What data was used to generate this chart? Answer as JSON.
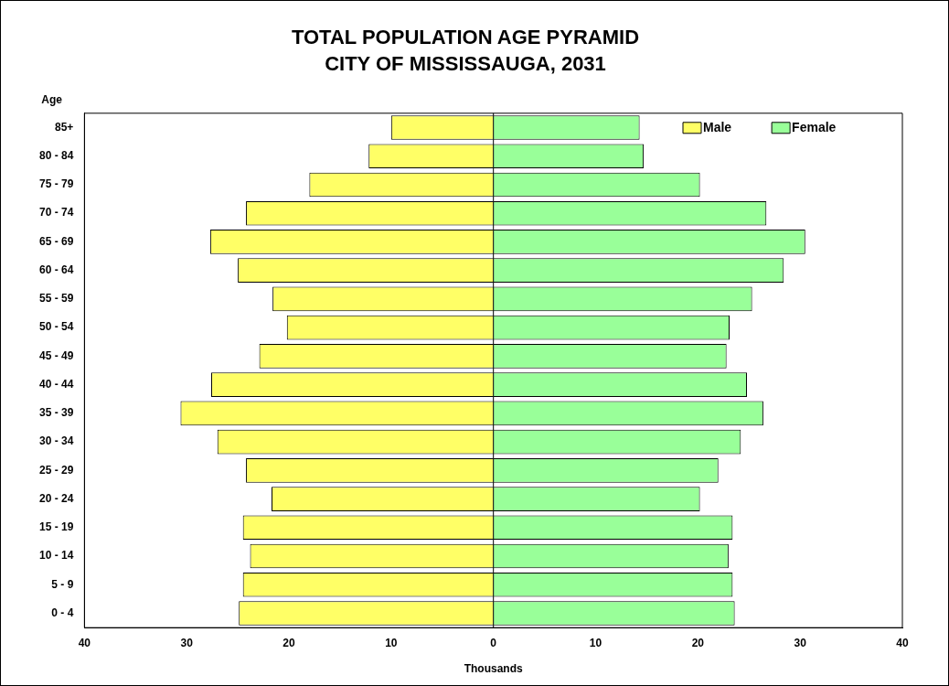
{
  "chart_data": {
    "type": "bar",
    "orientation": "horizontal",
    "stacked": true,
    "title": "TOTAL POPULATION AGE PYRAMID",
    "subtitle": "CITY OF MISSISSAUGA, 2031",
    "xlabel": "Thousands",
    "ylabel": "Age",
    "categories": [
      "85+",
      "80 - 84",
      "75 - 79",
      "70 - 74",
      "65 - 69",
      "60 - 64",
      "55 - 59",
      "50 - 54",
      "45 - 49",
      "40 - 44",
      "35 - 39",
      "30 - 34",
      "25 - 29",
      "20 - 24",
      "15 - 19",
      "10 - 14",
      "5 - 9",
      "0 - 4"
    ],
    "series": [
      {
        "name": "Male",
        "color": "#ffff66",
        "values": [
          -10.0,
          -12.2,
          -18.0,
          -24.2,
          -27.7,
          -25.0,
          -21.6,
          -20.2,
          -22.9,
          -27.6,
          -30.6,
          -27.0,
          -24.2,
          -21.7,
          -24.5,
          -23.8,
          -24.5,
          -24.9
        ]
      },
      {
        "name": "Female",
        "color": "#99ff99",
        "values": [
          14.3,
          14.7,
          20.2,
          26.7,
          30.5,
          28.4,
          25.3,
          23.1,
          22.8,
          24.8,
          26.4,
          24.2,
          22.0,
          20.2,
          23.4,
          23.0,
          23.4,
          23.6
        ]
      }
    ],
    "xlim": [
      -40,
      40
    ],
    "xticks": [
      {
        "value": -40,
        "label": "40"
      },
      {
        "value": -30,
        "label": "30"
      },
      {
        "value": -20,
        "label": "20"
      },
      {
        "value": -10,
        "label": "10"
      },
      0,
      10,
      20,
      30,
      40
    ],
    "legend": "top right"
  }
}
